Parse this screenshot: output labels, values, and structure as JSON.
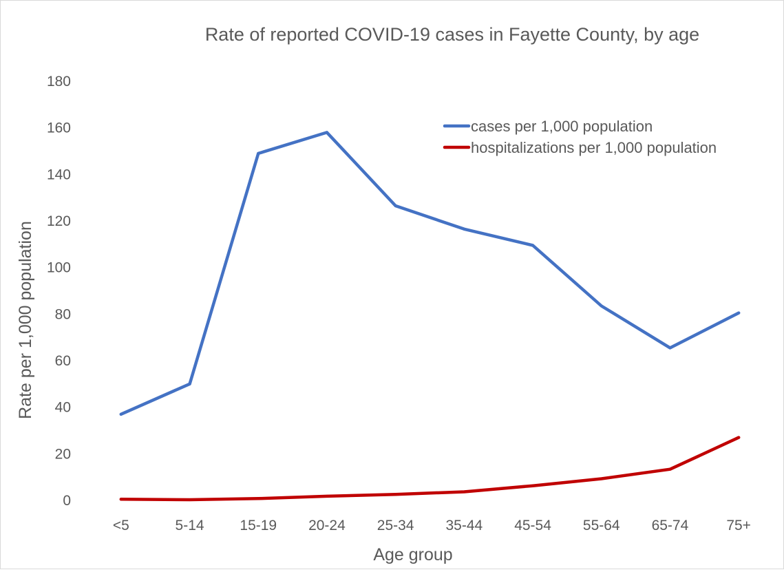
{
  "chart_data": {
    "type": "line",
    "title": "Rate of reported COVID-19 cases in Fayette County, by age",
    "xlabel": "Age group",
    "ylabel": "Rate per 1,000 population",
    "categories": [
      "<5",
      "5-14",
      "15-19",
      "20-24",
      "25-34",
      "35-44",
      "45-54",
      "55-64",
      "65-74",
      "75+"
    ],
    "ylim": [
      0,
      180
    ],
    "yticks": [
      "0",
      "20",
      "40",
      "60",
      "80",
      "100",
      "120",
      "140",
      "160",
      "180"
    ],
    "grid": false,
    "legend_position": "top-right",
    "series": [
      {
        "name": "cases per 1,000 population",
        "color": "#4472C4",
        "values": [
          37,
          50,
          149,
          158,
          126.5,
          116.5,
          109.5,
          83.5,
          65.5,
          80.5
        ]
      },
      {
        "name": "hospitalizations per 1,000 population",
        "color": "#C00000",
        "values": [
          0.5,
          0.3,
          0.8,
          1.8,
          2.6,
          3.7,
          6.3,
          9.3,
          13.4,
          27
        ]
      }
    ]
  }
}
